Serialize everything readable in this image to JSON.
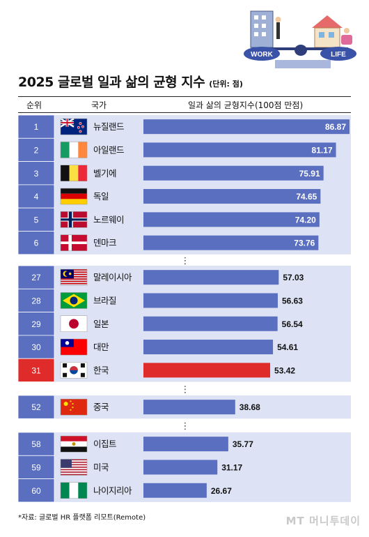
{
  "title": "2025 글로벌 일과 삶의 균형 지수",
  "unit": "(단위: 점)",
  "headers": {
    "rank": "순위",
    "country": "국가",
    "index": "일과 삶의 균형지수(100점 만점)"
  },
  "illustration": {
    "work_label": "WORK",
    "life_label": "LIFE"
  },
  "source": "*자료: 글로벌 HR 플랫폼 리모트(Remote)",
  "logo": "MT 머니투데이",
  "ellipsis": "⋮",
  "colors": {
    "bar": "#5a6fc0",
    "highlight": "#e02b2b",
    "panel": "#dde3f4",
    "rank_box": "#5a6fc0"
  },
  "chart_data": {
    "type": "bar",
    "orientation": "horizontal",
    "xlim": [
      0,
      86.87
    ],
    "groups": [
      {
        "rows": [
          {
            "rank": "1",
            "country": "뉴질랜드",
            "flag": "new-zealand",
            "value": 86.87,
            "label": "86.87"
          },
          {
            "rank": "2",
            "country": "아일랜드",
            "flag": "ireland",
            "value": 81.17,
            "label": "81.17"
          },
          {
            "rank": "3",
            "country": "벨기에",
            "flag": "belgium",
            "value": 75.91,
            "label": "75.91"
          },
          {
            "rank": "4",
            "country": "독일",
            "flag": "germany",
            "value": 74.65,
            "label": "74.65"
          },
          {
            "rank": "5",
            "country": "노르웨이",
            "flag": "norway",
            "value": 74.2,
            "label": "74.20"
          },
          {
            "rank": "6",
            "country": "덴마크",
            "flag": "denmark",
            "value": 73.76,
            "label": "73.76"
          }
        ]
      },
      {
        "rows": [
          {
            "rank": "27",
            "country": "말레이시아",
            "flag": "malaysia",
            "value": 57.03,
            "label": "57.03"
          },
          {
            "rank": "28",
            "country": "브라질",
            "flag": "brazil",
            "value": 56.63,
            "label": "56.63"
          },
          {
            "rank": "29",
            "country": "일본",
            "flag": "japan",
            "value": 56.54,
            "label": "56.54"
          },
          {
            "rank": "30",
            "country": "대만",
            "flag": "taiwan",
            "value": 54.61,
            "label": "54.61"
          },
          {
            "rank": "31",
            "country": "한국",
            "flag": "south-korea",
            "value": 53.42,
            "label": "53.42",
            "highlight": true
          }
        ]
      },
      {
        "rows": [
          {
            "rank": "52",
            "country": "중국",
            "flag": "china",
            "value": 38.68,
            "label": "38.68"
          }
        ]
      },
      {
        "rows": [
          {
            "rank": "58",
            "country": "이집트",
            "flag": "egypt",
            "value": 35.77,
            "label": "35.77"
          },
          {
            "rank": "59",
            "country": "미국",
            "flag": "usa",
            "value": 31.17,
            "label": "31.17"
          },
          {
            "rank": "60",
            "country": "나이지리아",
            "flag": "nigeria",
            "value": 26.67,
            "label": "26.67"
          }
        ]
      }
    ]
  }
}
